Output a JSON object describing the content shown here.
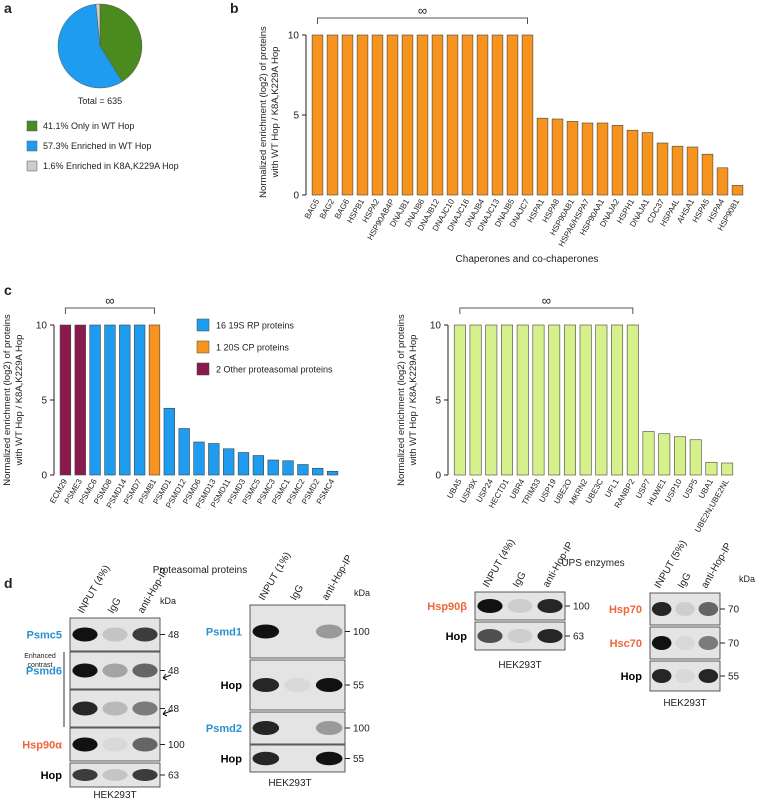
{
  "panel_labels": [
    "a",
    "b",
    "c",
    "d"
  ],
  "chart_data": [
    {
      "type": "pie",
      "categories": [
        "41.1% Only in WT Hop",
        "57.3% Enriched in WT Hop",
        "1.6% Enriched in K8A,K229A Hop"
      ],
      "values": [
        41.1,
        57.3,
        1.6
      ],
      "colors": [
        "#4b8a1e",
        "#1e9cf0",
        "#cccccc"
      ],
      "total_label": "Total = 635"
    },
    {
      "type": "bar",
      "color": "#f7941d",
      "bracket_label": "∞",
      "y_label": [
        "Normalized enrichment (log2) of proteins",
        "with WT Hop / K8A,K229A Hop"
      ],
      "x_label": "Chaperones and co-chaperones",
      "categories": [
        "BAG5",
        "BAG2",
        "BAG6",
        "HSPB1",
        "HSPA2",
        "HSP90AB4P",
        "DNAJB1",
        "DNAJB6",
        "DNAJB12",
        "DNAJC10",
        "DNAJC16",
        "DNAJB4",
        "DNAJC13",
        "DNAJB5",
        "DNAJC7",
        "HSPA1",
        "HSPA8",
        "HSP90AB1",
        "HSPA6/HSPA7",
        "HSP90AA1",
        "DNAJA2",
        "HSPH1",
        "DNAJA1",
        "CDC37",
        "HSPA4L",
        "AHSA1",
        "HSPA5",
        "HSPA4",
        "HSP90B1"
      ],
      "values": [
        10,
        10,
        10,
        10,
        10,
        10,
        10,
        10,
        10,
        10,
        10,
        10,
        10,
        10,
        10,
        4.8,
        4.75,
        4.6,
        4.5,
        4.5,
        4.35,
        4.05,
        3.9,
        3.25,
        3.05,
        3.0,
        2.55,
        1.7,
        0.6
      ],
      "ylim": [
        0,
        10
      ],
      "yticks": [
        0,
        5,
        10
      ]
    },
    {
      "type": "bar",
      "bracket_label": "∞",
      "y_label": [
        "Normalized enrichment (log2) of proteins",
        "with WT Hop / K8A,K229A Hop"
      ],
      "x_label": "Proteasomal proteins",
      "categories": [
        "ECM29",
        "PSME3",
        "PSMC6",
        "PSMD8",
        "PSMD14",
        "PSMD7",
        "PSMB1",
        "PSMD1",
        "PSMD12",
        "PSMD6",
        "PSMD13",
        "PSMD11",
        "PSMD3",
        "PSMC5",
        "PSMC3",
        "PSMC1",
        "PSMC2",
        "PSMD2",
        "PSMC4"
      ],
      "values": [
        10,
        10,
        10,
        10,
        10,
        10,
        10,
        4.45,
        3.1,
        2.2,
        2.1,
        1.75,
        1.5,
        1.3,
        1.0,
        0.95,
        0.7,
        0.45,
        0.25
      ],
      "colors": [
        "#8b1a4c",
        "#8b1a4c",
        "#1e9cf0",
        "#1e9cf0",
        "#1e9cf0",
        "#1e9cf0",
        "#f7941d",
        "#1e9cf0",
        "#1e9cf0",
        "#1e9cf0",
        "#1e9cf0",
        "#1e9cf0",
        "#1e9cf0",
        "#1e9cf0",
        "#1e9cf0",
        "#1e9cf0",
        "#1e9cf0",
        "#1e9cf0",
        "#1e9cf0"
      ],
      "legend": [
        {
          "label": "16 19S RP proteins",
          "color": "#1e9cf0"
        },
        {
          "label": "1 20S CP proteins",
          "color": "#f7941d"
        },
        {
          "label": "2 Other proteasomal proteins",
          "color": "#8b1a4c"
        }
      ],
      "ylim": [
        0,
        10
      ],
      "yticks": [
        0,
        5,
        10
      ]
    },
    {
      "type": "bar",
      "color": "#d6f08c",
      "bracket_label": "∞",
      "y_label": [
        "Normalized enrichment (log2) of proteins",
        "with WT Hop / K8A,K229A Hop"
      ],
      "x_label": "UPS enzymes",
      "categories": [
        "UBA5",
        "USP9X",
        "USP24",
        "HECTD1",
        "UBR4",
        "TRIM33",
        "USP19",
        "UBE2O",
        "MKRN2",
        "UBE3C",
        "UFL1",
        "RANBP2",
        "USP7",
        "HUWE1",
        "USP10",
        "USP5",
        "UBA1",
        "UBE2N;UBE2NL"
      ],
      "values": [
        10,
        10,
        10,
        10,
        10,
        10,
        10,
        10,
        10,
        10,
        10,
        10,
        2.9,
        2.75,
        2.55,
        2.35,
        0.85,
        0.8
      ],
      "ylim": [
        0,
        10
      ],
      "yticks": [
        0,
        5,
        10
      ]
    }
  ],
  "blots": [
    {
      "columns": [
        "INPUT (4%)",
        "IgG",
        "anti-Hop-IP"
      ],
      "kda_header": "kDa",
      "note": "Enhanced contrast",
      "cell_line": "HEK293T",
      "rows": [
        {
          "label": "Psmc5",
          "kda": 48,
          "color": "#2a8fd0"
        },
        {
          "label": "Psmd6",
          "kda": 48,
          "color": "#2a8fd0"
        },
        {
          "kda": 48
        },
        {
          "label": "Hsp90α",
          "kda": 100,
          "color": "#f0653a"
        },
        {
          "label": "Hop",
          "kda": 63,
          "color": "#000000"
        }
      ]
    },
    {
      "columns": [
        "INPUT (1%)",
        "IgG",
        "anti-Hop-IP"
      ],
      "kda_header": "kDa",
      "cell_line": "HEK293T",
      "rows": [
        {
          "label": "Psmd1",
          "kda": 100,
          "color": "#2a8fd0"
        },
        {
          "label": "Hop",
          "kda": 55,
          "color": "#000000"
        },
        {
          "label": "Psmd2",
          "kda": 100,
          "color": "#2a8fd0"
        },
        {
          "label": "Hop",
          "kda": 55,
          "color": "#000000"
        }
      ]
    },
    {
      "columns": [
        "INPUT (4%)",
        "IgG",
        "anti-Hop-IP"
      ],
      "cell_line": "HEK293T",
      "rows": [
        {
          "label": "Hsp90β",
          "kda": 100,
          "color": "#f0653a"
        },
        {
          "label": "Hop",
          "kda": 63,
          "color": "#000000"
        }
      ]
    },
    {
      "columns": [
        "INPUT (5%)",
        "IgG",
        "anti-Hop-IP"
      ],
      "kda_header": "kDa",
      "cell_line": "HEK293T",
      "rows": [
        {
          "label": "Hsp70",
          "kda": 70,
          "color": "#f0653a"
        },
        {
          "label": "Hsc70",
          "kda": 70,
          "color": "#f0653a"
        },
        {
          "label": "Hop",
          "kda": 55,
          "color": "#000000"
        }
      ]
    }
  ]
}
